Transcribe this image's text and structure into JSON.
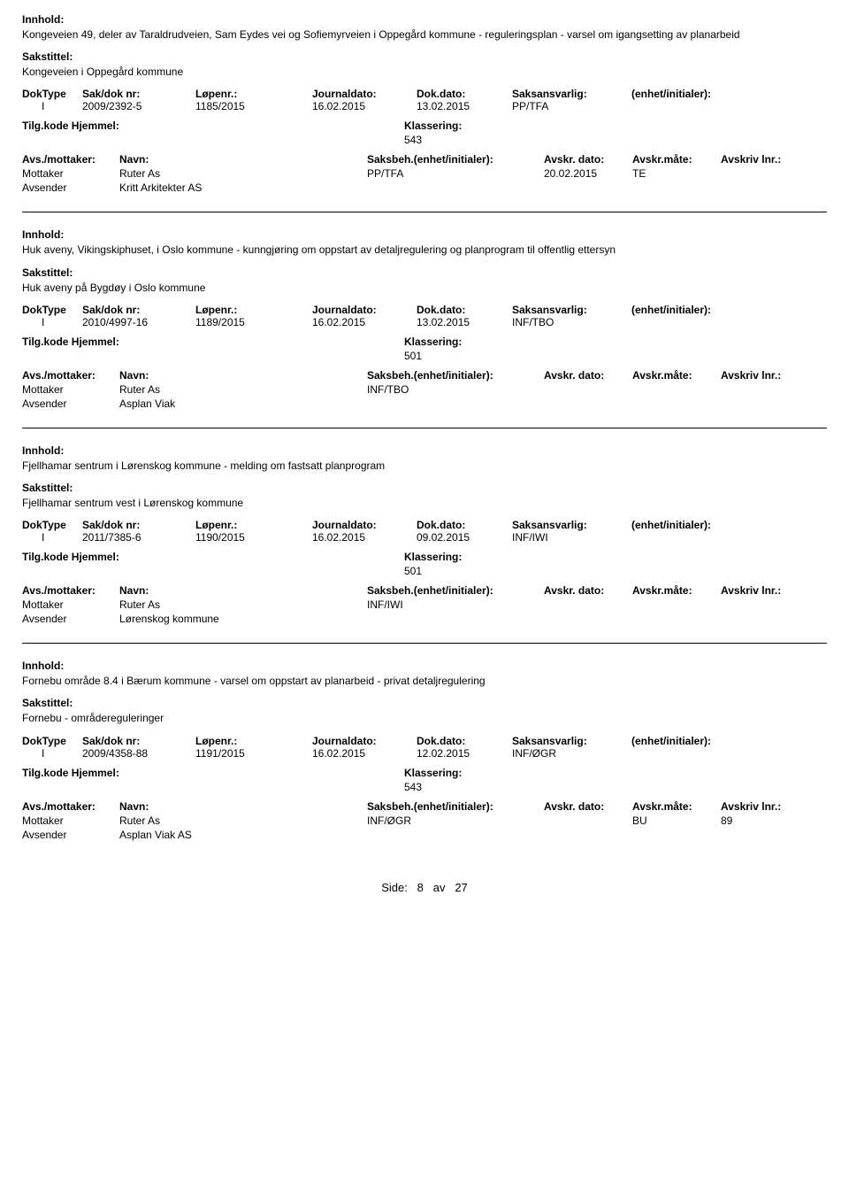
{
  "labels": {
    "innhold": "Innhold:",
    "sakstittel": "Sakstittel:",
    "doktype": "DokType",
    "saknr": "Sak/dok nr:",
    "lopenr": "Løpenr.:",
    "journaldato": "Journaldato:",
    "dokdato": "Dok.dato:",
    "saksansvarlig": "Saksansvarlig:",
    "enhet_init": "(enhet/initialer):",
    "tilgkode": "Tilg.kode",
    "hjemmel": "Hjemmel:",
    "klassering": "Klassering:",
    "avs_mottaker": "Avs./mottaker:",
    "navn": "Navn:",
    "saksbeh_ei": "Saksbeh.(enhet/initialer):",
    "avskr_dato": "Avskr. dato:",
    "avskr_mate": "Avskr.måte:",
    "avskr_lnr": "Avskriv lnr.:",
    "mottaker": "Mottaker",
    "avsender": "Avsender"
  },
  "records": [
    {
      "innhold": "Kongeveien 49, deler av Taraldrudveien, Sam Eydes vei og Sofiemyrveien i Oppegård kommune - reguleringsplan - varsel om igangsetting av planarbeid",
      "sakstittel": "Kongeveien  i Oppegård kommune",
      "doktype": "I",
      "saknr": "2009/2392-5",
      "lopenr": "1185/2015",
      "journaldato": "16.02.2015",
      "dokdato": "13.02.2015",
      "saksansvarlig": "PP/TFA",
      "klassering": "543",
      "mottaker": "Ruter As",
      "mottaker_saksbeh": "PP/TFA",
      "mottaker_avskrdato": "20.02.2015",
      "mottaker_avskrmate": "TE",
      "mottaker_avskrlnr": "",
      "avsender": "Kritt Arkitekter AS"
    },
    {
      "innhold": "Huk aveny, Vikingskiphuset, i Oslo kommune - kunngjøring om oppstart av detaljregulering og planprogram til offentlig ettersyn",
      "sakstittel": "Huk aveny på Bygdøy i Oslo kommune",
      "doktype": "I",
      "saknr": "2010/4997-16",
      "lopenr": "1189/2015",
      "journaldato": "16.02.2015",
      "dokdato": "13.02.2015",
      "saksansvarlig": "INF/TBO",
      "klassering": "501",
      "mottaker": "Ruter As",
      "mottaker_saksbeh": "INF/TBO",
      "mottaker_avskrdato": "",
      "mottaker_avskrmate": "",
      "mottaker_avskrlnr": "",
      "avsender": "Asplan Viak"
    },
    {
      "innhold": "Fjellhamar sentrum i Lørenskog kommune - melding om fastsatt planprogram",
      "sakstittel": "Fjellhamar sentrum vest i Lørenskog kommune",
      "doktype": "I",
      "saknr": "2011/7385-6",
      "lopenr": "1190/2015",
      "journaldato": "16.02.2015",
      "dokdato": "09.02.2015",
      "saksansvarlig": "INF/IWI",
      "klassering": "501",
      "mottaker": "Ruter As",
      "mottaker_saksbeh": "INF/IWI",
      "mottaker_avskrdato": "",
      "mottaker_avskrmate": "",
      "mottaker_avskrlnr": "",
      "avsender": "Lørenskog kommune"
    },
    {
      "innhold": "Fornebu område 8.4 i Bærum kommune - varsel om oppstart av planarbeid - privat detaljregulering",
      "sakstittel": "Fornebu - områdereguleringer",
      "doktype": "I",
      "saknr": "2009/4358-88",
      "lopenr": "1191/2015",
      "journaldato": "16.02.2015",
      "dokdato": "12.02.2015",
      "saksansvarlig": "INF/ØGR",
      "klassering": "543",
      "mottaker": "Ruter As",
      "mottaker_saksbeh": "INF/ØGR",
      "mottaker_avskrdato": "",
      "mottaker_avskrmate": "BU",
      "mottaker_avskrlnr": "89",
      "avsender": "Asplan Viak AS"
    }
  ],
  "footer": {
    "side_label": "Side:",
    "page": "8",
    "av": "av",
    "total": "27"
  }
}
